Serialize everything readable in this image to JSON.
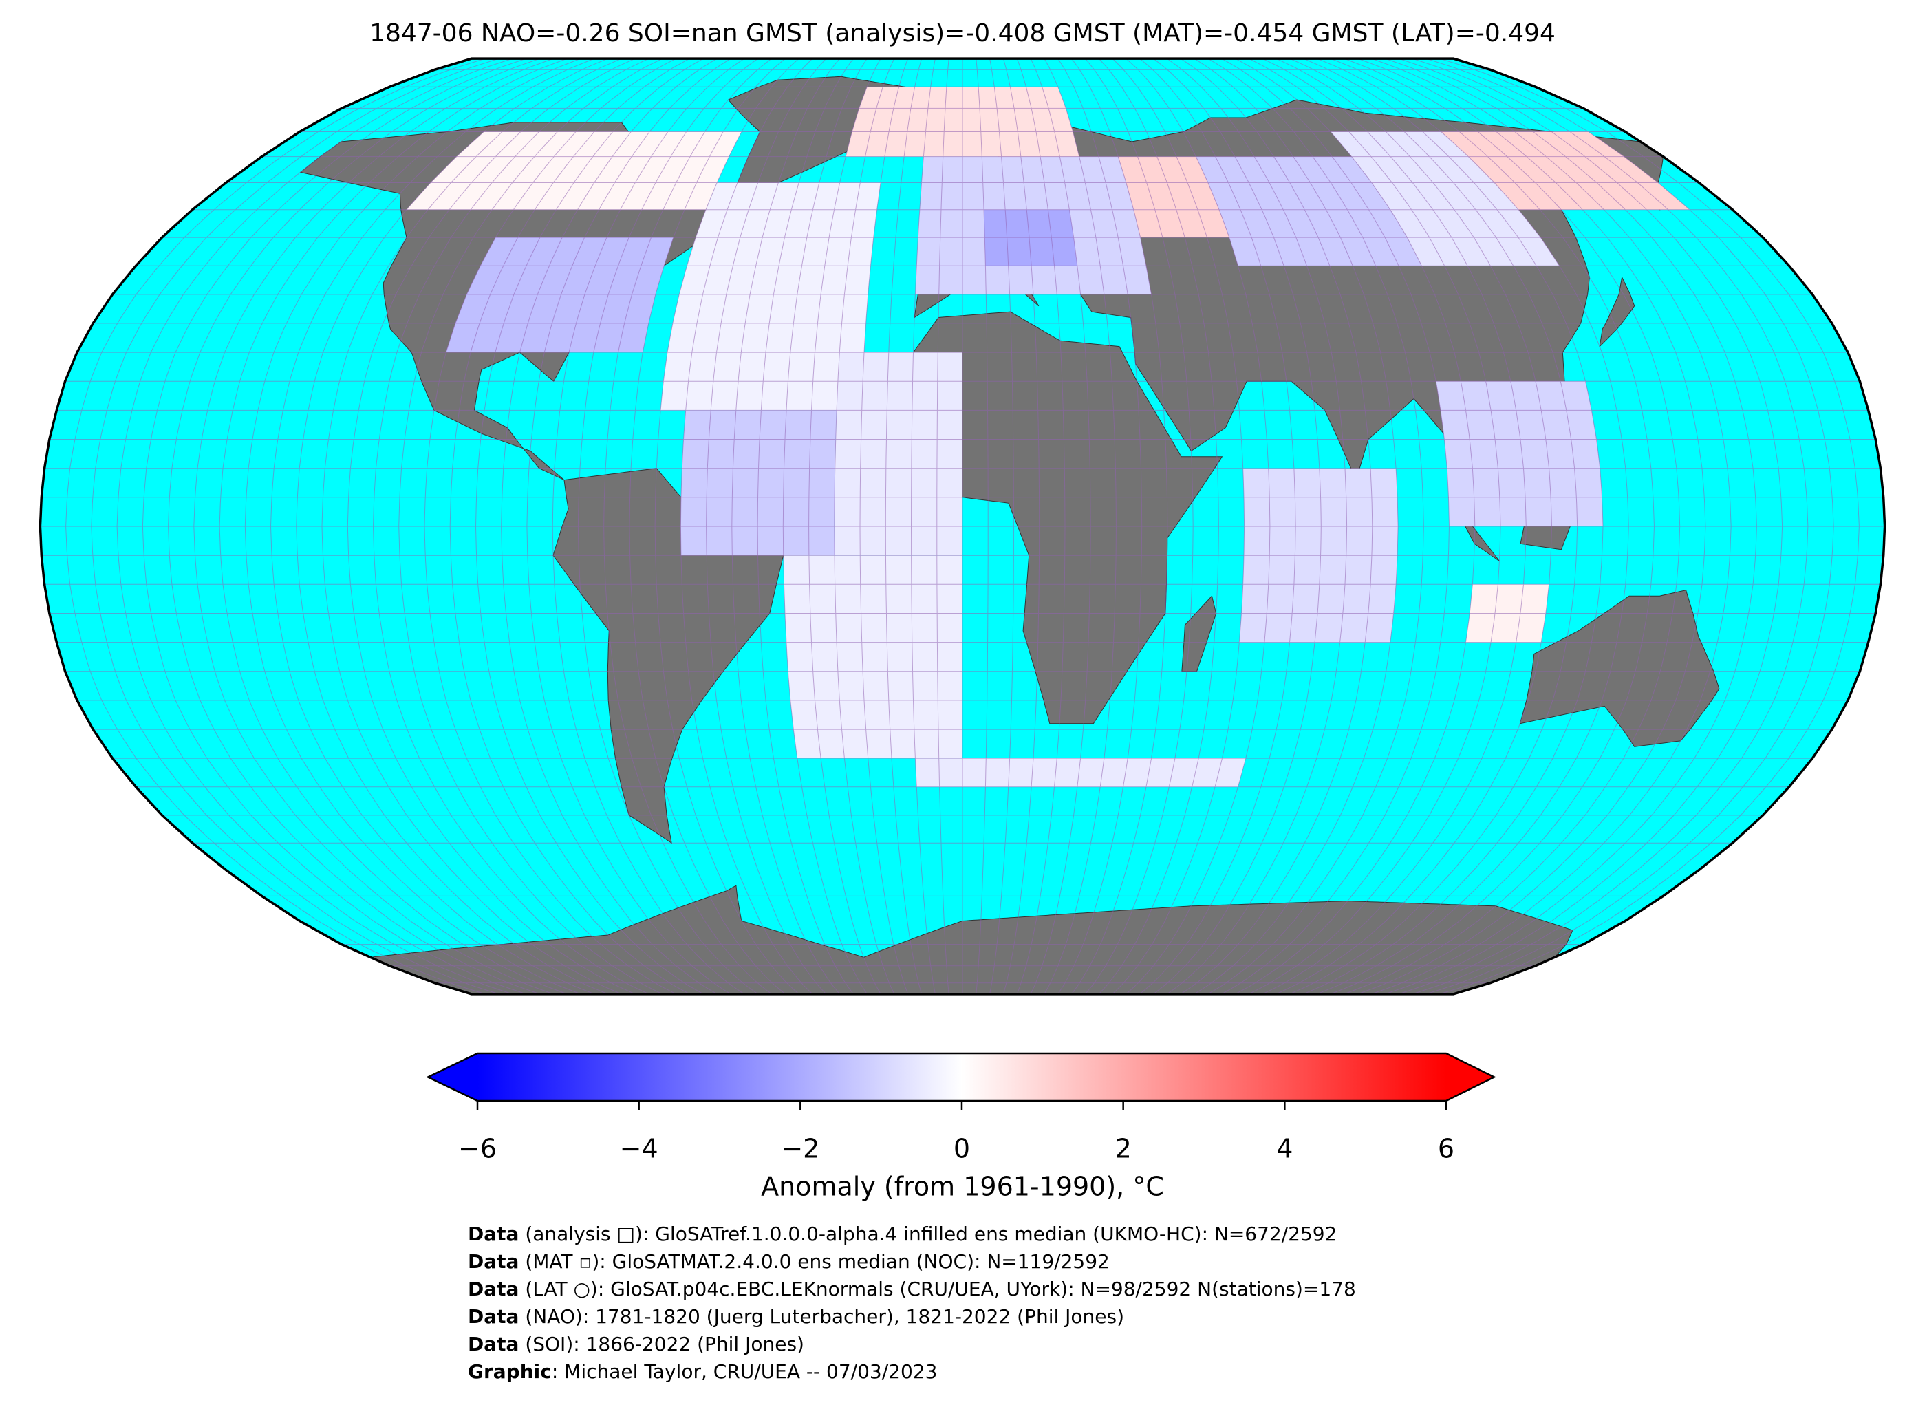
{
  "chart_data": {
    "type": "map",
    "title": "1847-06 NAO=-0.26 SOI=nan GMST (analysis)=-0.408 GMST (MAT)=-0.454 GMST (LAT)=-0.494",
    "ocean_color": "#00ffff",
    "land_color": "#737373",
    "regions": [
      {
        "lon": [
          -105,
          -65
        ],
        "lat": [
          30,
          50
        ],
        "value": -1.5
      },
      {
        "lon": [
          -130,
          -60
        ],
        "lat": [
          55,
          70
        ],
        "value": 0.2
      },
      {
        "lon": [
          -60,
          -20
        ],
        "lat": [
          20,
          60
        ],
        "value": -0.3
      },
      {
        "lon": [
          -55,
          -25
        ],
        "lat": [
          -5,
          20
        ],
        "value": -1.2
      },
      {
        "lon": [
          -35,
          0
        ],
        "lat": [
          -40,
          -5
        ],
        "value": -0.4
      },
      {
        "lon": [
          -25,
          0
        ],
        "lat": [
          -5,
          30
        ],
        "value": -0.5
      },
      {
        "lon": [
          -30,
          30
        ],
        "lat": [
          65,
          80
        ],
        "value": 0.7
      },
      {
        "lon": [
          -10,
          40
        ],
        "lat": [
          40,
          65
        ],
        "value": -1.0
      },
      {
        "lon": [
          5,
          25
        ],
        "lat": [
          45,
          55
        ],
        "value": -2.0
      },
      {
        "lon": [
          40,
          60
        ],
        "lat": [
          50,
          65
        ],
        "value": 1.0
      },
      {
        "lon": [
          60,
          100
        ],
        "lat": [
          45,
          65
        ],
        "value": -1.2
      },
      {
        "lon": [
          100,
          130
        ],
        "lat": [
          45,
          70
        ],
        "value": -0.6
      },
      {
        "lon": [
          130,
          170
        ],
        "lat": [
          55,
          70
        ],
        "value": 1.0
      },
      {
        "lon": [
          55,
          85
        ],
        "lat": [
          -20,
          10
        ],
        "value": -0.8
      },
      {
        "lon": [
          95,
          125
        ],
        "lat": [
          0,
          25
        ],
        "value": -1.0
      },
      {
        "lon": [
          100,
          115
        ],
        "lat": [
          -20,
          -10
        ],
        "value": 0.3
      },
      {
        "lon": [
          -10,
          60
        ],
        "lat": [
          -45,
          -40
        ],
        "value": -0.5
      }
    ],
    "colorbar": {
      "range": [
        -6,
        6
      ],
      "colors": [
        "#0000ff",
        "#ffffff",
        "#ff0000"
      ],
      "ticks": [
        {
          "value": -6,
          "label": "−6"
        },
        {
          "value": -4,
          "label": "−4"
        },
        {
          "value": -2,
          "label": "−2"
        },
        0,
        2,
        4,
        6
      ],
      "label": "Anomaly (from 1961-1990), °C"
    },
    "footnotes": [
      {
        "label": "Data",
        "text": " (analysis □): GloSATref.1.0.0.0-alpha.4 infilled ens median (UKMO-HC): N=672/2592"
      },
      {
        "label": "Data",
        "text": " (MAT ▫): GloSATMAT.2.4.0.0 ens median (NOC): N=119/2592"
      },
      {
        "label": "Data",
        "text": " (LAT ○): GloSAT.p04c.EBC.LEKnormals (CRU/UEA, UYork): N=98/2592 N(stations)=178"
      },
      {
        "label": "Data",
        "text": " (NAO): 1781-1820 (Juerg Luterbacher), 1821-2022 (Phil Jones)"
      },
      {
        "label": "Data",
        "text": " (SOI): 1866-2022 (Phil Jones)"
      },
      {
        "label": "Graphic",
        "text": ": Michael Taylor, CRU/UEA -- 07/03/2023"
      }
    ]
  }
}
